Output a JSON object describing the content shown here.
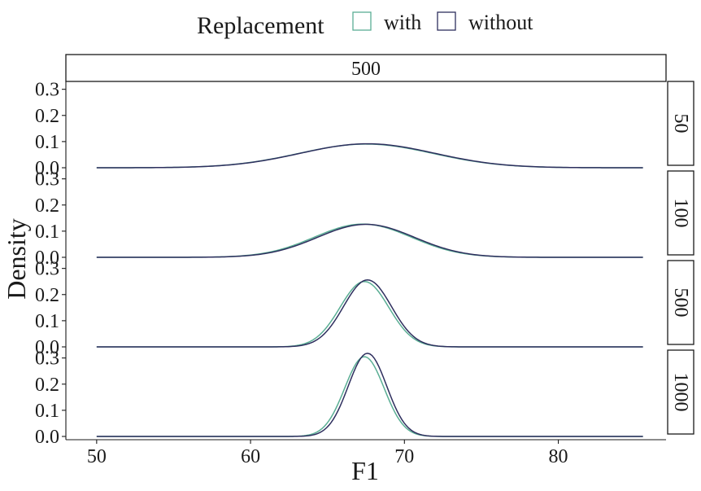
{
  "chart_data": {
    "type": "line",
    "xlabel": "F1",
    "ylabel": "Density",
    "xlim": [
      48,
      87
    ],
    "ylim": [
      0,
      0.33
    ],
    "x_ticks": [
      50,
      60,
      70,
      80
    ],
    "y_ticks": [
      "0.0",
      "0.1",
      "0.2",
      "0.3"
    ],
    "grid": false,
    "legend": {
      "title": "Replacement",
      "position": "top",
      "entries": [
        {
          "label": "with",
          "color": "#5aae94"
        },
        {
          "label": "without",
          "color": "#2e2f5e"
        }
      ]
    },
    "column_strip": "500",
    "x_range": [
      50,
      85.5
    ],
    "panels": [
      {
        "strip": "50",
        "series": [
          {
            "name": "with",
            "color": "#5aae94",
            "center": 67.5,
            "sd": 4.35,
            "peak": 0.0905
          },
          {
            "name": "without",
            "color": "#2e2f5e",
            "center": 67.6,
            "sd": 4.35,
            "peak": 0.0915
          }
        ]
      },
      {
        "strip": "100",
        "series": [
          {
            "name": "with",
            "color": "#5aae94",
            "center": 67.3,
            "sd": 3.15,
            "peak": 0.127
          },
          {
            "name": "without",
            "color": "#2e2f5e",
            "center": 67.5,
            "sd": 3.15,
            "peak": 0.126
          }
        ]
      },
      {
        "strip": "500",
        "series": [
          {
            "name": "with",
            "color": "#5aae94",
            "center": 67.4,
            "sd": 1.58,
            "peak": 0.25
          },
          {
            "name": "without",
            "color": "#2e2f5e",
            "center": 67.6,
            "sd": 1.55,
            "peak": 0.256
          }
        ]
      },
      {
        "strip": "1000",
        "series": [
          {
            "name": "with",
            "color": "#5aae94",
            "center": 67.4,
            "sd": 1.28,
            "peak": 0.305
          },
          {
            "name": "without",
            "color": "#2e2f5e",
            "center": 67.6,
            "sd": 1.25,
            "peak": 0.318
          }
        ]
      }
    ]
  }
}
